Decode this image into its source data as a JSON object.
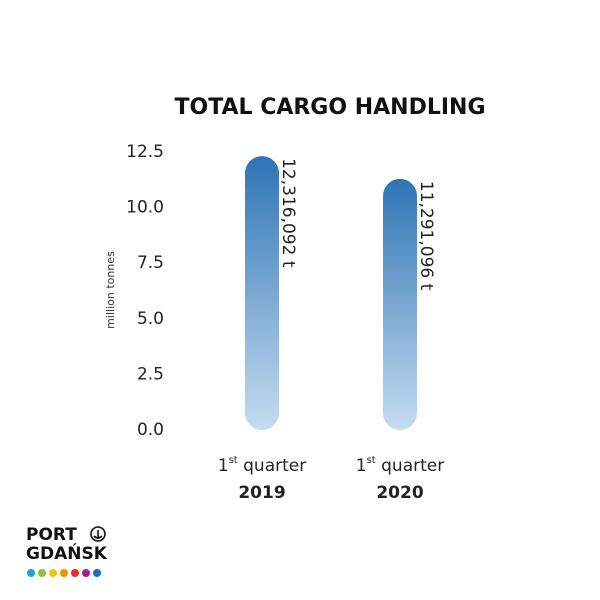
{
  "chart_data": {
    "type": "bar",
    "title": "TOTAL CARGO HANDLING",
    "y_label": "million tonnes",
    "period": {
      "number": "1",
      "suffix": "st",
      "word": "quarter"
    },
    "categories": [
      "2019",
      "2020"
    ],
    "values": [
      12.316092,
      11.291096
    ],
    "value_labels": [
      "12,316,092 t",
      "11,291,096 t"
    ],
    "colors": [
      "#2e74b5",
      "#c5dcf0"
    ],
    "ylim": [
      0,
      12.5
    ],
    "yticks": [
      {
        "value": 0,
        "label": "0.0"
      },
      2.5,
      {
        "value": 5,
        "label": "5.0"
      },
      7.5,
      {
        "value": 10,
        "label": "10.0"
      },
      12.5
    ],
    "grid": false
  },
  "logo": {
    "line1": "PORT",
    "line2": "GDAŃSK"
  }
}
